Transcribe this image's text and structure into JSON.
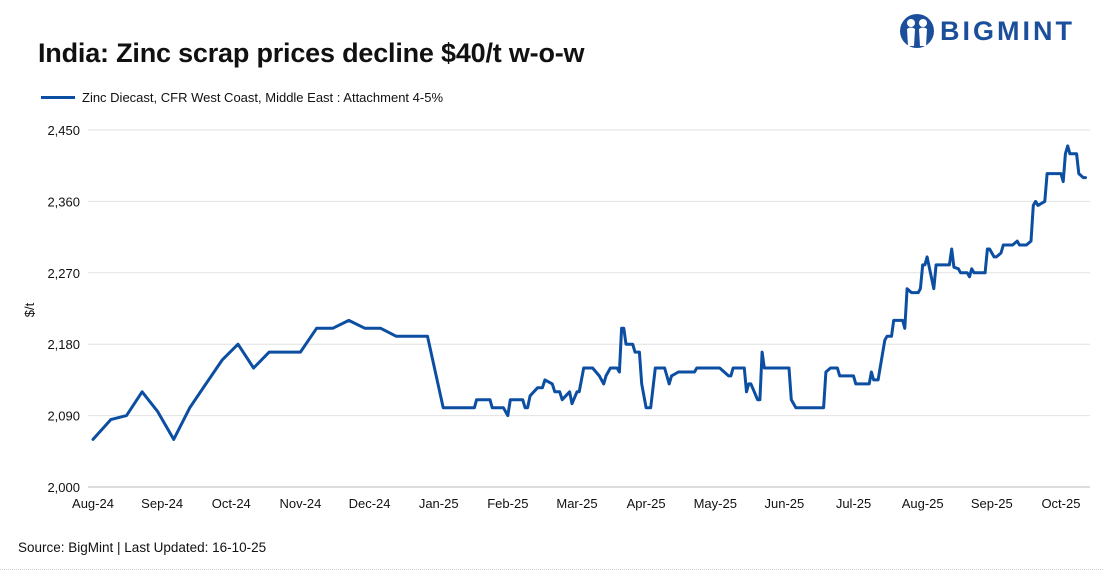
{
  "title": "India: Zinc scrap prices decline $40/t w-o-w",
  "source": "Source: BigMint | Last Updated: 16-10-25",
  "logo": {
    "text": "BIGMINT",
    "color": "#1b4f9c"
  },
  "chart_data": {
    "type": "line",
    "title": "India: Zinc scrap prices decline $40/t w-o-w",
    "ylabel": "$/t",
    "xlabel": "",
    "ylim": [
      2000,
      2450
    ],
    "yticks": [
      "2,000",
      "2,090",
      "2,180",
      "2,270",
      "2,360",
      "2,450"
    ],
    "yticks_values": [
      2000,
      2090,
      2180,
      2270,
      2360,
      2450
    ],
    "xticks": [
      "Aug-24",
      "Sep-24",
      "Oct-24",
      "Nov-24",
      "Dec-24",
      "Jan-25",
      "Feb-25",
      "Mar-25",
      "Apr-25",
      "May-25",
      "Jun-25",
      "Jul-25",
      "Aug-25",
      "Sep-25",
      "Oct-25"
    ],
    "grid": true,
    "legend_position": "top-left",
    "series": [
      {
        "name": "Zinc Diecast, CFR West Coast, Middle East : Attachment 4-5%",
        "color": "#0b4ea2",
        "points": [
          [
            "2024-08-01",
            2060
          ],
          [
            "2024-08-09",
            2085
          ],
          [
            "2024-08-16",
            2090
          ],
          [
            "2024-08-23",
            2120
          ],
          [
            "2024-08-30",
            2095
          ],
          [
            "2024-09-06",
            2060
          ],
          [
            "2024-09-13",
            2100
          ],
          [
            "2024-09-20",
            2130
          ],
          [
            "2024-09-27",
            2160
          ],
          [
            "2024-10-04",
            2180
          ],
          [
            "2024-10-11",
            2150
          ],
          [
            "2024-10-18",
            2170
          ],
          [
            "2024-11-01",
            2170
          ],
          [
            "2024-11-08",
            2200
          ],
          [
            "2024-11-15",
            2200
          ],
          [
            "2024-11-22",
            2210
          ],
          [
            "2024-11-29",
            2200
          ],
          [
            "2024-12-06",
            2200
          ],
          [
            "2024-12-13",
            2190
          ],
          [
            "2024-12-27",
            2190
          ],
          [
            "2025-01-03",
            2100
          ],
          [
            "2025-01-17",
            2100
          ],
          [
            "2025-01-18",
            2110
          ],
          [
            "2025-01-24",
            2110
          ],
          [
            "2025-01-25",
            2100
          ],
          [
            "2025-01-30",
            2100
          ],
          [
            "2025-02-01",
            2090
          ],
          [
            "2025-02-02",
            2110
          ],
          [
            "2025-02-07",
            2110
          ],
          [
            "2025-02-08",
            2100
          ],
          [
            "2025-02-09",
            2100
          ],
          [
            "2025-02-10",
            2115
          ],
          [
            "2025-02-13",
            2125
          ],
          [
            "2025-02-15",
            2125
          ],
          [
            "2025-02-16",
            2135
          ],
          [
            "2025-02-19",
            2130
          ],
          [
            "2025-02-20",
            2120
          ],
          [
            "2025-02-22",
            2120
          ],
          [
            "2025-02-23",
            2110
          ],
          [
            "2025-02-26",
            2120
          ],
          [
            "2025-02-27",
            2105
          ],
          [
            "2025-03-01",
            2120
          ],
          [
            "2025-03-02",
            2120
          ],
          [
            "2025-03-04",
            2150
          ],
          [
            "2025-03-08",
            2150
          ],
          [
            "2025-03-11",
            2140
          ],
          [
            "2025-03-13",
            2130
          ],
          [
            "2025-03-14",
            2140
          ],
          [
            "2025-03-16",
            2150
          ],
          [
            "2025-03-19",
            2150
          ],
          [
            "2025-03-20",
            2145
          ],
          [
            "2025-03-21",
            2200
          ],
          [
            "2025-03-22",
            2200
          ],
          [
            "2025-03-23",
            2180
          ],
          [
            "2025-03-26",
            2180
          ],
          [
            "2025-03-27",
            2170
          ],
          [
            "2025-03-29",
            2170
          ],
          [
            "2025-03-30",
            2130
          ],
          [
            "2025-04-01",
            2100
          ],
          [
            "2025-04-03",
            2100
          ],
          [
            "2025-04-05",
            2150
          ],
          [
            "2025-04-09",
            2150
          ],
          [
            "2025-04-11",
            2130
          ],
          [
            "2025-04-12",
            2140
          ],
          [
            "2025-04-15",
            2145
          ],
          [
            "2025-04-22",
            2145
          ],
          [
            "2025-04-23",
            2150
          ],
          [
            "2025-05-03",
            2150
          ],
          [
            "2025-05-07",
            2140
          ],
          [
            "2025-05-08",
            2140
          ],
          [
            "2025-05-09",
            2150
          ],
          [
            "2025-05-14",
            2150
          ],
          [
            "2025-05-15",
            2120
          ],
          [
            "2025-05-16",
            2130
          ],
          [
            "2025-05-17",
            2130
          ],
          [
            "2025-05-20",
            2110
          ],
          [
            "2025-05-21",
            2110
          ],
          [
            "2025-05-22",
            2170
          ],
          [
            "2025-05-23",
            2150
          ],
          [
            "2025-06-03",
            2150
          ],
          [
            "2025-06-04",
            2110
          ],
          [
            "2025-06-06",
            2100
          ],
          [
            "2025-06-18",
            2100
          ],
          [
            "2025-06-19",
            2145
          ],
          [
            "2025-06-21",
            2150
          ],
          [
            "2025-06-24",
            2150
          ],
          [
            "2025-06-25",
            2140
          ],
          [
            "2025-07-01",
            2140
          ],
          [
            "2025-07-02",
            2130
          ],
          [
            "2025-07-08",
            2130
          ],
          [
            "2025-07-09",
            2145
          ],
          [
            "2025-07-10",
            2135
          ],
          [
            "2025-07-12",
            2135
          ],
          [
            "2025-07-15",
            2185
          ],
          [
            "2025-07-16",
            2190
          ],
          [
            "2025-07-18",
            2190
          ],
          [
            "2025-07-19",
            2210
          ],
          [
            "2025-07-23",
            2210
          ],
          [
            "2025-07-24",
            2200
          ],
          [
            "2025-07-25",
            2250
          ],
          [
            "2025-07-27",
            2245
          ],
          [
            "2025-07-30",
            2245
          ],
          [
            "2025-07-31",
            2250
          ],
          [
            "2025-08-01",
            2280
          ],
          [
            "2025-08-02",
            2280
          ],
          [
            "2025-08-03",
            2290
          ],
          [
            "2025-08-06",
            2250
          ],
          [
            "2025-08-07",
            2280
          ],
          [
            "2025-08-13",
            2280
          ],
          [
            "2025-08-14",
            2300
          ],
          [
            "2025-08-15",
            2277
          ],
          [
            "2025-08-17",
            2275
          ],
          [
            "2025-08-18",
            2270
          ],
          [
            "2025-08-21",
            2270
          ],
          [
            "2025-08-22",
            2265
          ],
          [
            "2025-08-23",
            2275
          ],
          [
            "2025-08-24",
            2270
          ],
          [
            "2025-08-29",
            2270
          ],
          [
            "2025-08-30",
            2300
          ],
          [
            "2025-08-31",
            2300
          ],
          [
            "2025-09-02",
            2290
          ],
          [
            "2025-09-03",
            2290
          ],
          [
            "2025-09-05",
            2295
          ],
          [
            "2025-09-06",
            2305
          ],
          [
            "2025-09-10",
            2305
          ],
          [
            "2025-09-12",
            2310
          ],
          [
            "2025-09-13",
            2305
          ],
          [
            "2025-09-16",
            2305
          ],
          [
            "2025-09-18",
            2310
          ],
          [
            "2025-09-19",
            2355
          ],
          [
            "2025-09-20",
            2360
          ],
          [
            "2025-09-21",
            2355
          ],
          [
            "2025-09-24",
            2360
          ],
          [
            "2025-09-25",
            2395
          ],
          [
            "2025-10-01",
            2395
          ],
          [
            "2025-10-02",
            2385
          ],
          [
            "2025-10-03",
            2420
          ],
          [
            "2025-10-04",
            2430
          ],
          [
            "2025-10-05",
            2420
          ],
          [
            "2025-10-08",
            2420
          ],
          [
            "2025-10-09",
            2395
          ],
          [
            "2025-10-11",
            2390
          ],
          [
            "2025-10-12",
            2390
          ]
        ]
      }
    ]
  }
}
